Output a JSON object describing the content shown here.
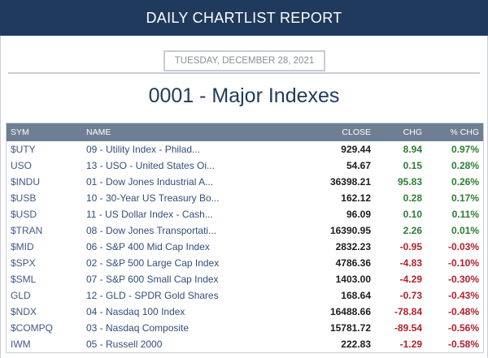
{
  "header": {
    "title": "DAILY CHARTLIST REPORT"
  },
  "report": {
    "date": "TUESDAY, DECEMBER 28, 2021",
    "title": "0001 - Major Indexes"
  },
  "table": {
    "columns": {
      "sym": "SYM",
      "name": "NAME",
      "close": "CLOSE",
      "chg": "CHG",
      "pct": "% CHG"
    },
    "rows": [
      {
        "sym": "$UTY",
        "name": "09 - Utility Index - Philad...",
        "close": "929.44",
        "chg": "8.94",
        "pct": "0.97%",
        "dir": "pos"
      },
      {
        "sym": "USO",
        "name": "13 - USO - United States Oi...",
        "close": "54.67",
        "chg": "0.15",
        "pct": "0.28%",
        "dir": "pos"
      },
      {
        "sym": "$INDU",
        "name": "01 - Dow Jones Industrial A...",
        "close": "36398.21",
        "chg": "95.83",
        "pct": "0.26%",
        "dir": "pos"
      },
      {
        "sym": "$USB",
        "name": "10 - 30-Year US Treasury Bo...",
        "close": "162.12",
        "chg": "0.28",
        "pct": "0.17%",
        "dir": "pos"
      },
      {
        "sym": "$USD",
        "name": "11 - US Dollar Index - Cash...",
        "close": "96.09",
        "chg": "0.10",
        "pct": "0.11%",
        "dir": "pos"
      },
      {
        "sym": "$TRAN",
        "name": "08 - Dow Jones Transportati...",
        "close": "16390.95",
        "chg": "2.26",
        "pct": "0.01%",
        "dir": "pos"
      },
      {
        "sym": "$MID",
        "name": "06 - S&P 400 Mid Cap Index",
        "close": "2832.23",
        "chg": "-0.95",
        "pct": "-0.03%",
        "dir": "neg"
      },
      {
        "sym": "$SPX",
        "name": "02 - S&P 500 Large Cap Index",
        "close": "4786.36",
        "chg": "-4.83",
        "pct": "-0.10%",
        "dir": "neg"
      },
      {
        "sym": "$SML",
        "name": "07 - S&P 600 Small Cap Index",
        "close": "1403.00",
        "chg": "-4.29",
        "pct": "-0.30%",
        "dir": "neg"
      },
      {
        "sym": "GLD",
        "name": "12 - GLD - SPDR Gold Shares",
        "close": "168.64",
        "chg": "-0.73",
        "pct": "-0.43%",
        "dir": "neg"
      },
      {
        "sym": "$NDX",
        "name": "04 - Nasdaq 100 Index",
        "close": "16488.66",
        "chg": "-78.84",
        "pct": "-0.48%",
        "dir": "neg"
      },
      {
        "sym": "$COMPQ",
        "name": "03 - Nasdaq Composite",
        "close": "15781.72",
        "chg": "-89.54",
        "pct": "-0.56%",
        "dir": "neg"
      },
      {
        "sym": "IWM",
        "name": "05 - Russell 2000",
        "close": "222.83",
        "chg": "-1.29",
        "pct": "-0.58%",
        "dir": "neg"
      }
    ]
  },
  "colors": {
    "header_bg": "#1f3a5c",
    "table_header_bg": "#6e7f93",
    "positive": "#2e7d32",
    "negative": "#b3202a",
    "link": "#2f4f7d"
  }
}
